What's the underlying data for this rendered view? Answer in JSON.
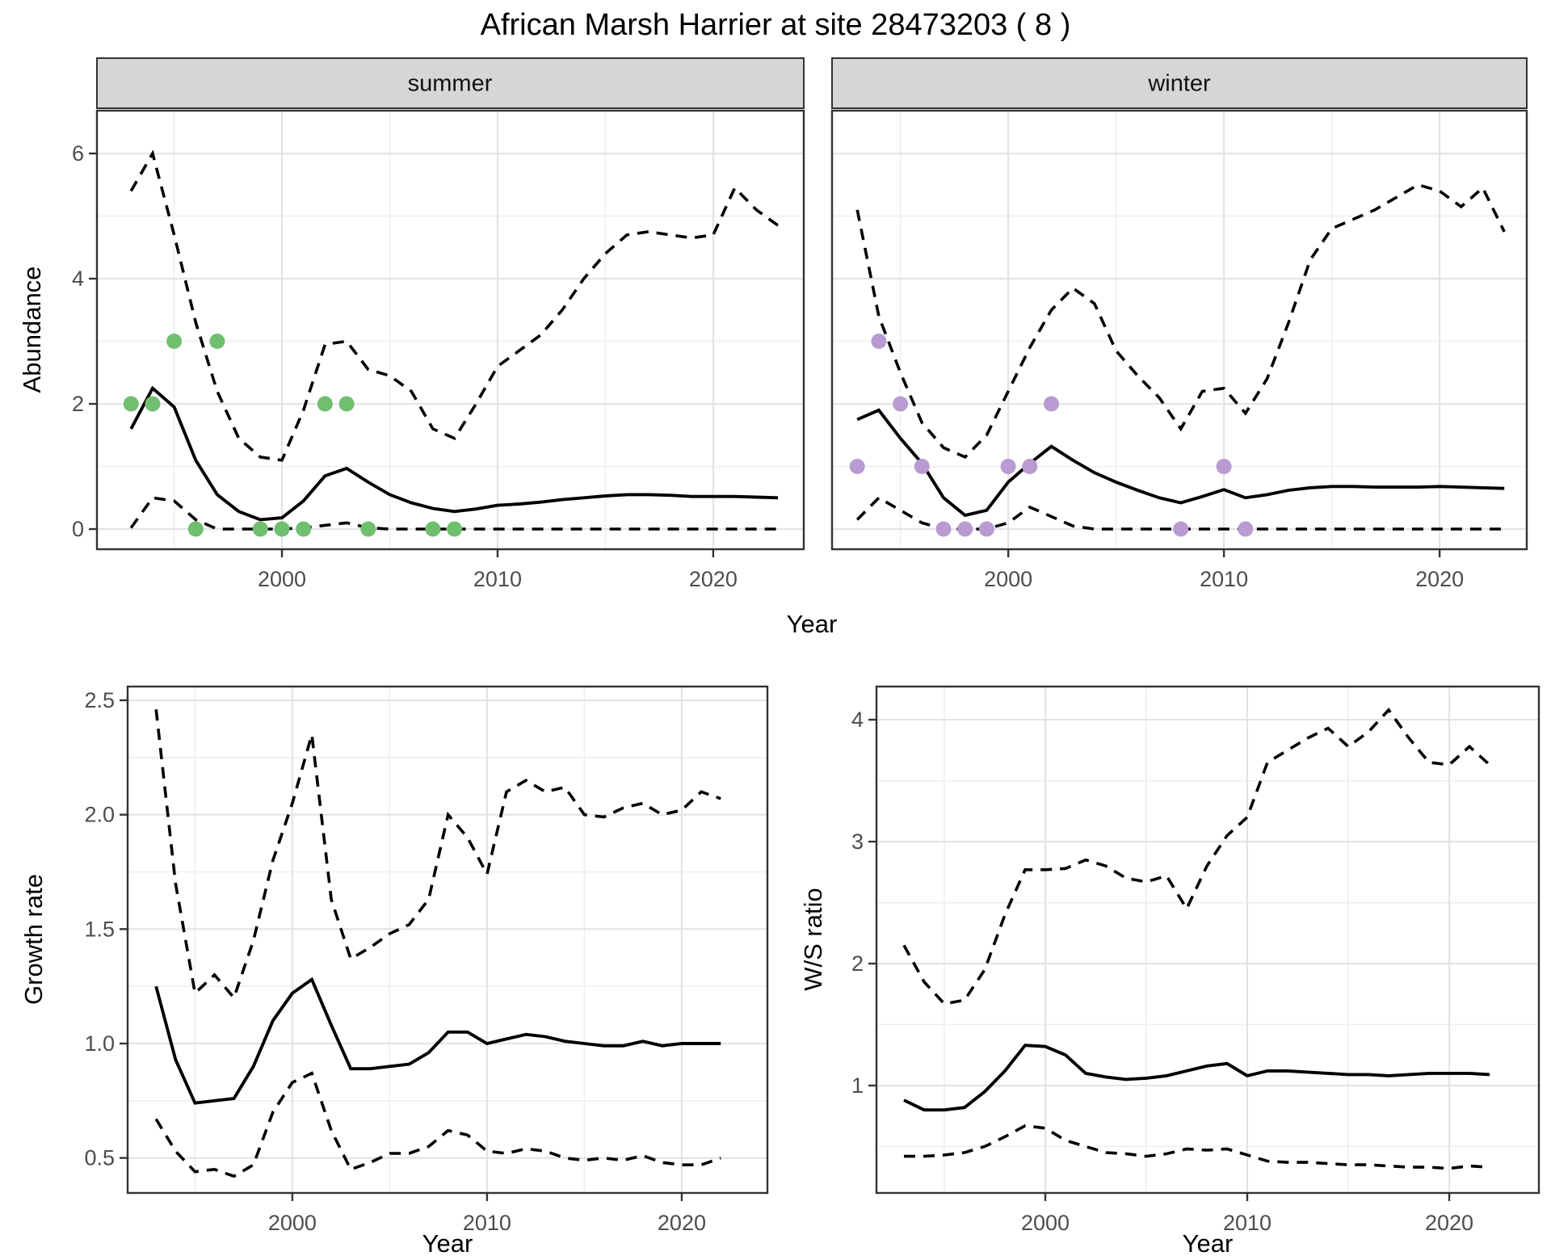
{
  "title": "African Marsh Harrier at site 28473203 ( 8 )",
  "colors": {
    "line": "#000000",
    "summer_point": "#6fbf6f",
    "winter_point": "#b99bd1",
    "grid_major": "#e3e3e3",
    "grid_minor": "#efefef",
    "panel_border": "#333333",
    "strip_bg": "#d6d6d6",
    "tick_text": "#4d4d4d",
    "axis_text": "#000000"
  },
  "chart_data": [
    {
      "id": "abundance",
      "type": "line",
      "title": "",
      "xlabel": "Year",
      "ylabel": "Abundance",
      "legend": "none",
      "grid": true,
      "ylim": [
        -0.322,
        6.684
      ],
      "xticks": [
        2000,
        2010,
        2020
      ],
      "xtick_labels": [
        "2000",
        "2010",
        "2020"
      ],
      "xticks_minor": [
        1995,
        2005,
        2015
      ],
      "yticks": [
        0,
        2,
        4,
        6
      ],
      "ytick_labels": [
        "0",
        "2",
        "4",
        "6"
      ],
      "yticks_minor": [
        1,
        3,
        5
      ],
      "years": [
        1993,
        1994,
        1995,
        1996,
        1997,
        1998,
        1999,
        2000,
        2001,
        2002,
        2003,
        2004,
        2005,
        2006,
        2007,
        2008,
        2009,
        2010,
        2011,
        2012,
        2013,
        2014,
        2015,
        2016,
        2017,
        2018,
        2019,
        2020,
        2021,
        2022,
        2023
      ],
      "facets": [
        {
          "key": "summer",
          "label": "summer",
          "xlim": [
            1991.42,
            2024.2
          ],
          "point_color": "#6fbf6f",
          "points": [
            [
              1993,
              2
            ],
            [
              1994,
              2
            ],
            [
              1995,
              3
            ],
            [
              1996,
              0
            ],
            [
              1997,
              3
            ],
            [
              1999,
              0
            ],
            [
              2000,
              0
            ],
            [
              2001,
              0
            ],
            [
              2002,
              2
            ],
            [
              2003,
              2
            ],
            [
              2004,
              0
            ],
            [
              2007,
              0
            ],
            [
              2008,
              0
            ]
          ],
          "fit": [
            1.6,
            2.25,
            1.95,
            1.1,
            0.55,
            0.28,
            0.15,
            0.18,
            0.45,
            0.85,
            0.97,
            0.75,
            0.55,
            0.42,
            0.33,
            0.28,
            0.32,
            0.38,
            0.4,
            0.43,
            0.47,
            0.5,
            0.53,
            0.55,
            0.55,
            0.54,
            0.52,
            0.52,
            0.52,
            0.51,
            0.5
          ],
          "upper": [
            5.4,
            6.0,
            4.7,
            3.3,
            2.2,
            1.45,
            1.15,
            1.1,
            1.9,
            2.95,
            3.0,
            2.55,
            2.45,
            2.2,
            1.6,
            1.45,
            2.0,
            2.6,
            2.85,
            3.1,
            3.5,
            4.0,
            4.4,
            4.7,
            4.75,
            4.7,
            4.65,
            4.7,
            5.45,
            5.1,
            4.85
          ],
          "lower": [
            0.02,
            0.5,
            0.45,
            0.15,
            0.0,
            0.0,
            0.0,
            0.0,
            0.02,
            0.06,
            0.1,
            0.02,
            0.0,
            0.0,
            0.0,
            0.0,
            0.0,
            0.0,
            0.0,
            0.0,
            0.0,
            0.0,
            0.0,
            0.0,
            0.0,
            0.0,
            0.0,
            0.0,
            0.0,
            0.0,
            0.0
          ]
        },
        {
          "key": "winter",
          "label": "winter",
          "xlim": [
            1991.83,
            2024.04
          ],
          "point_color": "#b99bd1",
          "points": [
            [
              1993,
              1
            ],
            [
              1994,
              3
            ],
            [
              1995,
              2
            ],
            [
              1996,
              1
            ],
            [
              1997,
              0
            ],
            [
              1998,
              0
            ],
            [
              1999,
              0
            ],
            [
              2000,
              1
            ],
            [
              2001,
              1
            ],
            [
              2002,
              2
            ],
            [
              2008,
              0
            ],
            [
              2010,
              1
            ],
            [
              2011,
              0
            ]
          ],
          "fit": [
            1.75,
            1.9,
            1.45,
            1.05,
            0.5,
            0.22,
            0.3,
            0.75,
            1.05,
            1.32,
            1.1,
            0.9,
            0.75,
            0.62,
            0.5,
            0.42,
            0.52,
            0.63,
            0.5,
            0.55,
            0.62,
            0.66,
            0.68,
            0.68,
            0.67,
            0.67,
            0.67,
            0.68,
            0.67,
            0.66,
            0.65
          ],
          "upper": [
            5.1,
            3.4,
            2.5,
            1.7,
            1.3,
            1.15,
            1.5,
            2.2,
            2.9,
            3.5,
            3.85,
            3.6,
            2.85,
            2.45,
            2.1,
            1.6,
            2.2,
            2.25,
            1.85,
            2.4,
            3.3,
            4.3,
            4.8,
            4.95,
            5.1,
            5.3,
            5.5,
            5.4,
            5.15,
            5.45,
            4.75
          ],
          "lower": [
            0.15,
            0.5,
            0.3,
            0.1,
            0.0,
            0.0,
            0.0,
            0.1,
            0.35,
            0.2,
            0.05,
            0.0,
            0.0,
            0.0,
            0.0,
            0.0,
            0.0,
            0.0,
            0.0,
            0.0,
            0.0,
            0.0,
            0.0,
            0.0,
            0.0,
            0.0,
            0.0,
            0.0,
            0.0,
            0.0,
            0.0
          ]
        }
      ]
    },
    {
      "id": "growth",
      "type": "line",
      "title": "",
      "xlabel": "Year",
      "ylabel": "Growth rate",
      "legend": "none",
      "grid": true,
      "xlim": [
        1991.54,
        2024.4
      ],
      "ylim": [
        0.347,
        2.56
      ],
      "xticks": [
        2000,
        2010,
        2020
      ],
      "xtick_labels": [
        "2000",
        "2010",
        "2020"
      ],
      "xticks_minor": [
        1995,
        2005,
        2015
      ],
      "yticks": [
        0.5,
        1.0,
        1.5,
        2.0,
        2.5
      ],
      "ytick_labels": [
        "0.5",
        "1.0",
        "1.5",
        "2.0",
        "2.5"
      ],
      "yticks_minor": [
        0.75,
        1.25,
        1.75,
        2.25
      ],
      "years": [
        1993,
        1994,
        1995,
        1996,
        1997,
        1998,
        1999,
        2000,
        2001,
        2002,
        2003,
        2004,
        2005,
        2006,
        2007,
        2008,
        2009,
        2010,
        2011,
        2012,
        2013,
        2014,
        2015,
        2016,
        2017,
        2018,
        2019,
        2020,
        2021,
        2022
      ],
      "series": {
        "fit": [
          1.25,
          0.93,
          0.74,
          0.75,
          0.76,
          0.9,
          1.1,
          1.22,
          1.28,
          1.08,
          0.89,
          0.89,
          0.9,
          0.91,
          0.96,
          1.05,
          1.05,
          1.0,
          1.02,
          1.04,
          1.03,
          1.01,
          1.0,
          0.99,
          0.99,
          1.01,
          0.99,
          1.0,
          1.0,
          1.0
        ],
        "upper": [
          2.46,
          1.7,
          1.22,
          1.3,
          1.2,
          1.45,
          1.8,
          2.05,
          2.35,
          1.63,
          1.37,
          1.42,
          1.48,
          1.52,
          1.63,
          2.0,
          1.9,
          1.74,
          2.1,
          2.15,
          2.1,
          2.12,
          2.0,
          1.99,
          2.03,
          2.05,
          2.0,
          2.02,
          2.1,
          2.07
        ],
        "lower": [
          0.67,
          0.53,
          0.44,
          0.45,
          0.42,
          0.47,
          0.7,
          0.83,
          0.87,
          0.62,
          0.45,
          0.48,
          0.52,
          0.52,
          0.55,
          0.62,
          0.6,
          0.53,
          0.52,
          0.54,
          0.53,
          0.5,
          0.49,
          0.5,
          0.49,
          0.51,
          0.48,
          0.47,
          0.47,
          0.5
        ]
      }
    },
    {
      "id": "ws",
      "type": "line",
      "title": "",
      "xlabel": "Year",
      "ylabel": "W/S ratio",
      "legend": "none",
      "grid": true,
      "xlim": [
        1991.64,
        2024.44
      ],
      "ylim": [
        0.119,
        4.272
      ],
      "xticks": [
        2000,
        2010,
        2020
      ],
      "xtick_labels": [
        "2000",
        "2010",
        "2020"
      ],
      "xticks_minor": [
        1995,
        2005,
        2015
      ],
      "yticks": [
        1,
        2,
        3,
        4
      ],
      "ytick_labels": [
        "1",
        "2",
        "3",
        "4"
      ],
      "yticks_minor": [
        0.5,
        1.5,
        2.5,
        3.5
      ],
      "years": [
        1993,
        1994,
        1995,
        1996,
        1997,
        1998,
        1999,
        2000,
        2001,
        2002,
        2003,
        2004,
        2005,
        2006,
        2007,
        2008,
        2009,
        2010,
        2011,
        2012,
        2013,
        2014,
        2015,
        2016,
        2017,
        2018,
        2019,
        2020,
        2021,
        2022
      ],
      "series": {
        "fit": [
          0.88,
          0.8,
          0.8,
          0.82,
          0.95,
          1.12,
          1.33,
          1.32,
          1.25,
          1.1,
          1.07,
          1.05,
          1.06,
          1.08,
          1.12,
          1.16,
          1.18,
          1.08,
          1.12,
          1.12,
          1.11,
          1.1,
          1.09,
          1.09,
          1.08,
          1.09,
          1.1,
          1.1,
          1.1,
          1.09
        ],
        "upper": [
          2.15,
          1.85,
          1.67,
          1.7,
          1.95,
          2.4,
          2.77,
          2.77,
          2.78,
          2.85,
          2.8,
          2.7,
          2.67,
          2.72,
          2.45,
          2.8,
          3.05,
          3.2,
          3.65,
          3.75,
          3.85,
          3.93,
          3.78,
          3.9,
          4.08,
          3.85,
          3.65,
          3.63,
          3.78,
          3.63
        ],
        "lower": [
          0.42,
          0.42,
          0.43,
          0.45,
          0.5,
          0.58,
          0.67,
          0.65,
          0.55,
          0.5,
          0.45,
          0.44,
          0.42,
          0.44,
          0.48,
          0.47,
          0.48,
          0.43,
          0.38,
          0.37,
          0.37,
          0.36,
          0.35,
          0.35,
          0.34,
          0.33,
          0.33,
          0.32,
          0.34,
          0.33
        ]
      }
    }
  ]
}
